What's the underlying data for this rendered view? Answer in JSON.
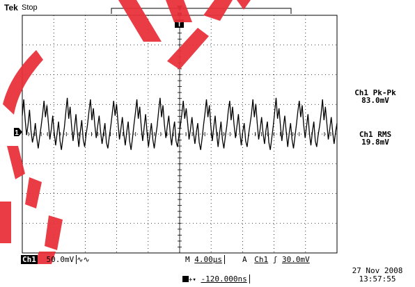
{
  "header": {
    "brand": "Tek",
    "status": "Stop"
  },
  "measurements": [
    {
      "label": "Ch1 Pk-Pk",
      "value": "83.0mV"
    },
    {
      "label": "Ch1 RMS",
      "value": "19.8mV"
    }
  ],
  "status_bar": {
    "channel": "Ch1",
    "volts_div": "50.0mV",
    "coupling_symbol": "∿∿",
    "timebase_prefix": "M",
    "time_div": "4.00µs",
    "trigger_mode": "A",
    "trigger_source": "Ch1",
    "trigger_slope_symbol": "ʃ",
    "trigger_level": "30.0mV",
    "trigger_position": "-120.000ns",
    "date": "27 Nov 2008",
    "time": "13:57:55"
  },
  "markers": {
    "channel_marker": "1",
    "trigger_marker": "T"
  },
  "colors": {
    "background": "#ffffff",
    "trace": "#000000",
    "graticule": "#000000",
    "watermark": "#e8323c"
  },
  "chart_data": {
    "type": "line",
    "divisions": {
      "x": 10,
      "y": 8
    },
    "series": [
      {
        "values": [
          0.55,
          1.1,
          0.4,
          -0.1,
          0.25,
          0.75,
          0.05,
          -0.35,
          -0.1,
          0.3,
          -0.2,
          -0.55,
          -0.15,
          0.2,
          0.6,
          1.05,
          0.5,
          0.9,
          0.3,
          -0.25,
          0.1,
          0.55,
          0.0,
          -0.45,
          -0.05,
          0.35,
          -0.3,
          -0.6,
          -0.2,
          0.15,
          0.65,
          1.15,
          0.45,
          0.85,
          0.2,
          -0.3,
          0.15,
          0.6,
          -0.05,
          -0.5,
          0.0,
          0.4,
          -0.25,
          -0.5,
          -0.1,
          0.25,
          0.7,
          1.1,
          0.4,
          0.8,
          0.25,
          -0.2,
          0.2,
          0.55,
          0.0,
          -0.4,
          -0.05,
          0.3,
          -0.35,
          -0.55,
          -0.15,
          0.2,
          0.6,
          1.05,
          0.55,
          0.95,
          0.3,
          -0.25,
          0.1,
          0.5,
          -0.05,
          -0.45,
          0.0,
          0.35,
          -0.3,
          -0.6,
          -0.2,
          0.25,
          0.65,
          1.1,
          0.45,
          0.85,
          0.2,
          -0.3,
          0.15,
          0.6,
          0.0,
          -0.5,
          -0.1,
          0.3,
          -0.25,
          -0.55,
          -0.15,
          0.2,
          0.7,
          1.15,
          0.5,
          0.9,
          0.25,
          -0.2,
          0.2,
          0.55,
          -0.05,
          -0.45,
          0.05,
          0.35,
          -0.3,
          -0.5,
          -0.1,
          0.2,
          0.6,
          1.05,
          0.45,
          0.8,
          0.3,
          -0.25,
          0.1,
          0.5,
          0.0,
          -0.4,
          0.0,
          0.3,
          -0.35,
          -0.6,
          -0.2,
          0.25,
          0.65,
          1.1,
          0.5,
          0.9,
          0.2,
          -0.3,
          0.15,
          0.55,
          -0.05,
          -0.5,
          -0.05,
          0.35,
          -0.25,
          -0.55,
          -0.15,
          0.2,
          0.7,
          1.05,
          0.4,
          0.85,
          0.25,
          -0.2,
          0.2,
          0.6,
          0.0,
          -0.45,
          0.0,
          0.3,
          -0.3,
          -0.5,
          -0.1,
          0.25,
          0.6,
          1.1,
          0.5,
          0.95,
          0.3,
          -0.25,
          0.1,
          0.5,
          -0.05,
          -0.4,
          0.05,
          0.35,
          -0.35,
          -0.6,
          -0.2,
          0.2,
          0.65,
          1.15,
          0.45,
          0.8,
          0.2,
          -0.3,
          0.15,
          0.55,
          0.0,
          -0.5,
          -0.05,
          0.3,
          -0.25,
          -0.55,
          -0.15,
          0.25,
          0.7,
          1.05,
          0.5,
          0.9,
          0.25,
          -0.2,
          0.2,
          0.6,
          -0.05,
          -0.45,
          0.0,
          0.35,
          -0.3,
          -0.5,
          -0.1,
          0.2,
          0.6,
          1.1,
          0.4,
          0.85,
          0.3,
          -0.25,
          0.1,
          0.5,
          0.0,
          -0.4,
          0.0,
          0.3
        ]
      }
    ]
  }
}
